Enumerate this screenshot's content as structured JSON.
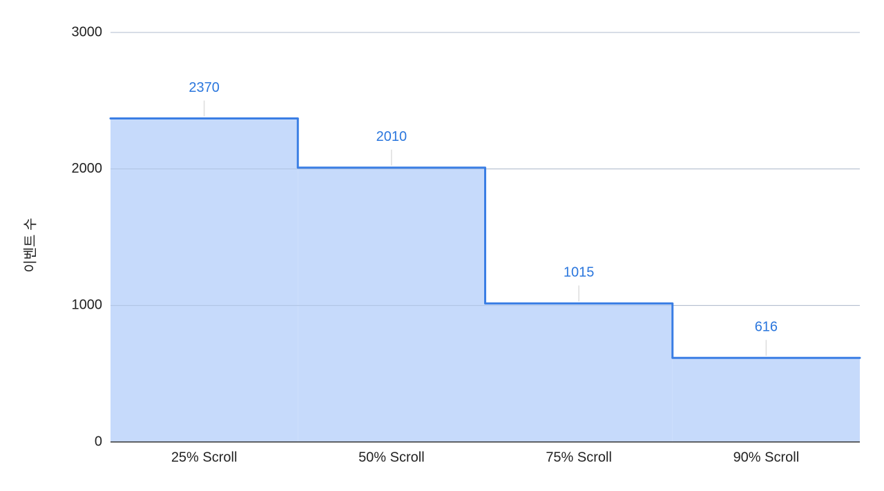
{
  "chart_data": {
    "type": "step-area",
    "y_label": "이벤트 수",
    "categories": [
      "25% Scroll",
      "50% Scroll",
      "75% Scroll",
      "90% Scroll"
    ],
    "values": [
      2370,
      2010,
      1015,
      616
    ],
    "color": "#3a7ee4",
    "fill": "#c6dafb",
    "label_color": "#2a76dd",
    "ylim": [
      0,
      3000
    ],
    "yticks": [
      0,
      1000,
      2000,
      3000
    ],
    "grid": true
  }
}
